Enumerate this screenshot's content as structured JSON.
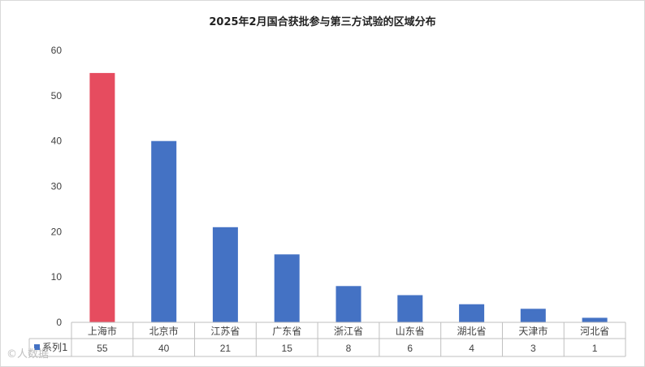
{
  "chart_data": {
    "type": "bar",
    "title": "2025年2月国合获批参与第三方试验的区域分布",
    "categories": [
      "上海市",
      "北京市",
      "江苏省",
      "广东省",
      "浙江省",
      "山东省",
      "湖北省",
      "天津市",
      "河北省"
    ],
    "series": [
      {
        "name": "系列1",
        "values": [
          55,
          40,
          21,
          15,
          8,
          6,
          4,
          3,
          1
        ]
      }
    ],
    "ylim": [
      0,
      60
    ],
    "yticks": [
      0,
      10,
      20,
      30,
      40,
      50,
      60
    ],
    "grid": false,
    "legend": "data-table",
    "data_table": true,
    "colors": {
      "default": "#4472C4",
      "highlight": "#E64C5F"
    },
    "highlight_index": 0
  },
  "watermark": "©人数据"
}
